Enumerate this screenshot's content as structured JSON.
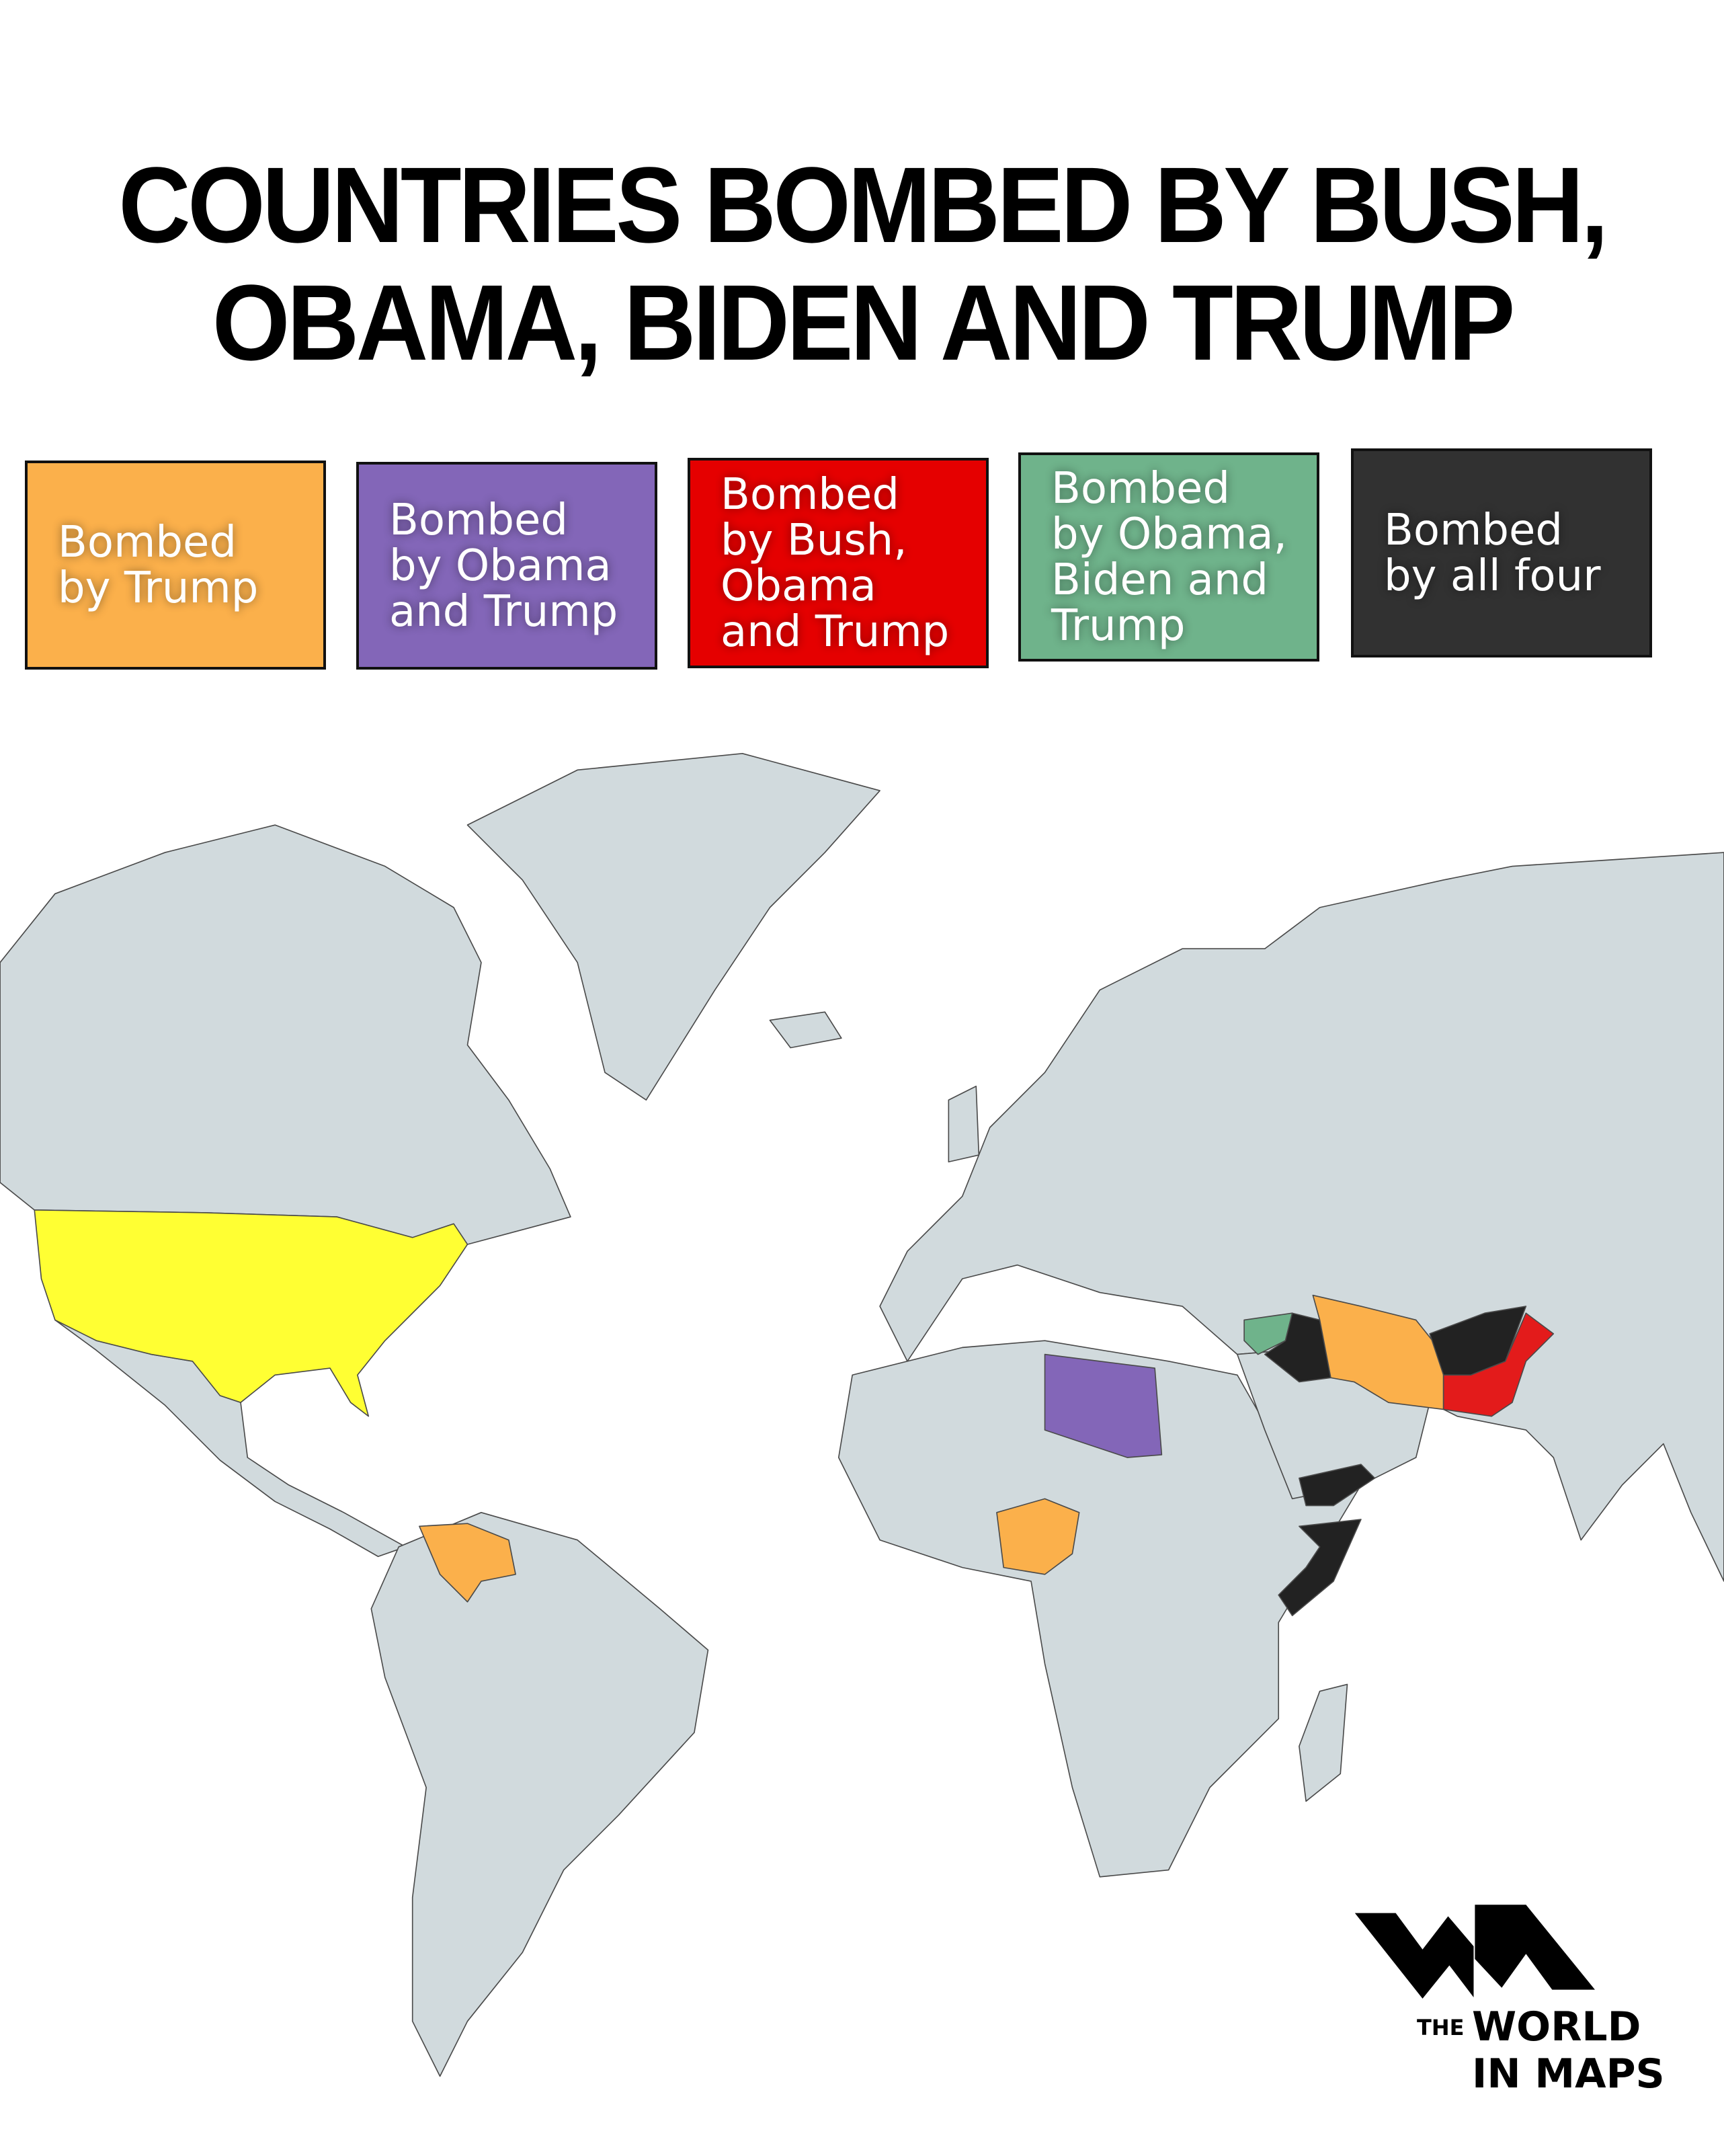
{
  "title": {
    "line1": "COUNTRIES BOMBED BY BUSH,",
    "line2": "OBAMA, BIDEN AND TRUMP"
  },
  "legend": [
    {
      "label": "Bombed\nby Trump",
      "color": "#fbb04b"
    },
    {
      "label": "Bombed\nby Obama\nand Trump",
      "color": "#8366b8"
    },
    {
      "label": "Bombed\nby Bush,\nObama\nand Trump",
      "color": "#e50000"
    },
    {
      "label": "Bombed\nby Obama,\nBiden and\nTrump",
      "color": "#6fb38b"
    },
    {
      "label": "Bombed\nby all four",
      "color": "#313131"
    }
  ],
  "map": {
    "land_color": "#d1dadd",
    "usa_color": "#ffff33",
    "regions": [
      {
        "country": "United States",
        "category": "bomber"
      },
      {
        "country": "Venezuela",
        "category": "Bombed by Trump"
      },
      {
        "country": "Nigeria",
        "category": "Bombed by Trump"
      },
      {
        "country": "Iran",
        "category": "Bombed by Trump"
      },
      {
        "country": "Libya",
        "category": "Bombed by Obama and Trump"
      },
      {
        "country": "Pakistan",
        "category": "Bombed by Bush, Obama and Trump"
      },
      {
        "country": "Syria",
        "category": "Bombed by Obama, Biden and Trump"
      },
      {
        "country": "Iraq",
        "category": "Bombed by all four"
      },
      {
        "country": "Afghanistan",
        "category": "Bombed by all four"
      },
      {
        "country": "Yemen",
        "category": "Bombed by all four"
      },
      {
        "country": "Somalia",
        "category": "Bombed by all four"
      }
    ]
  },
  "logo": {
    "the": "THE",
    "world": "WORLD",
    "in_maps": "IN MAPS"
  }
}
